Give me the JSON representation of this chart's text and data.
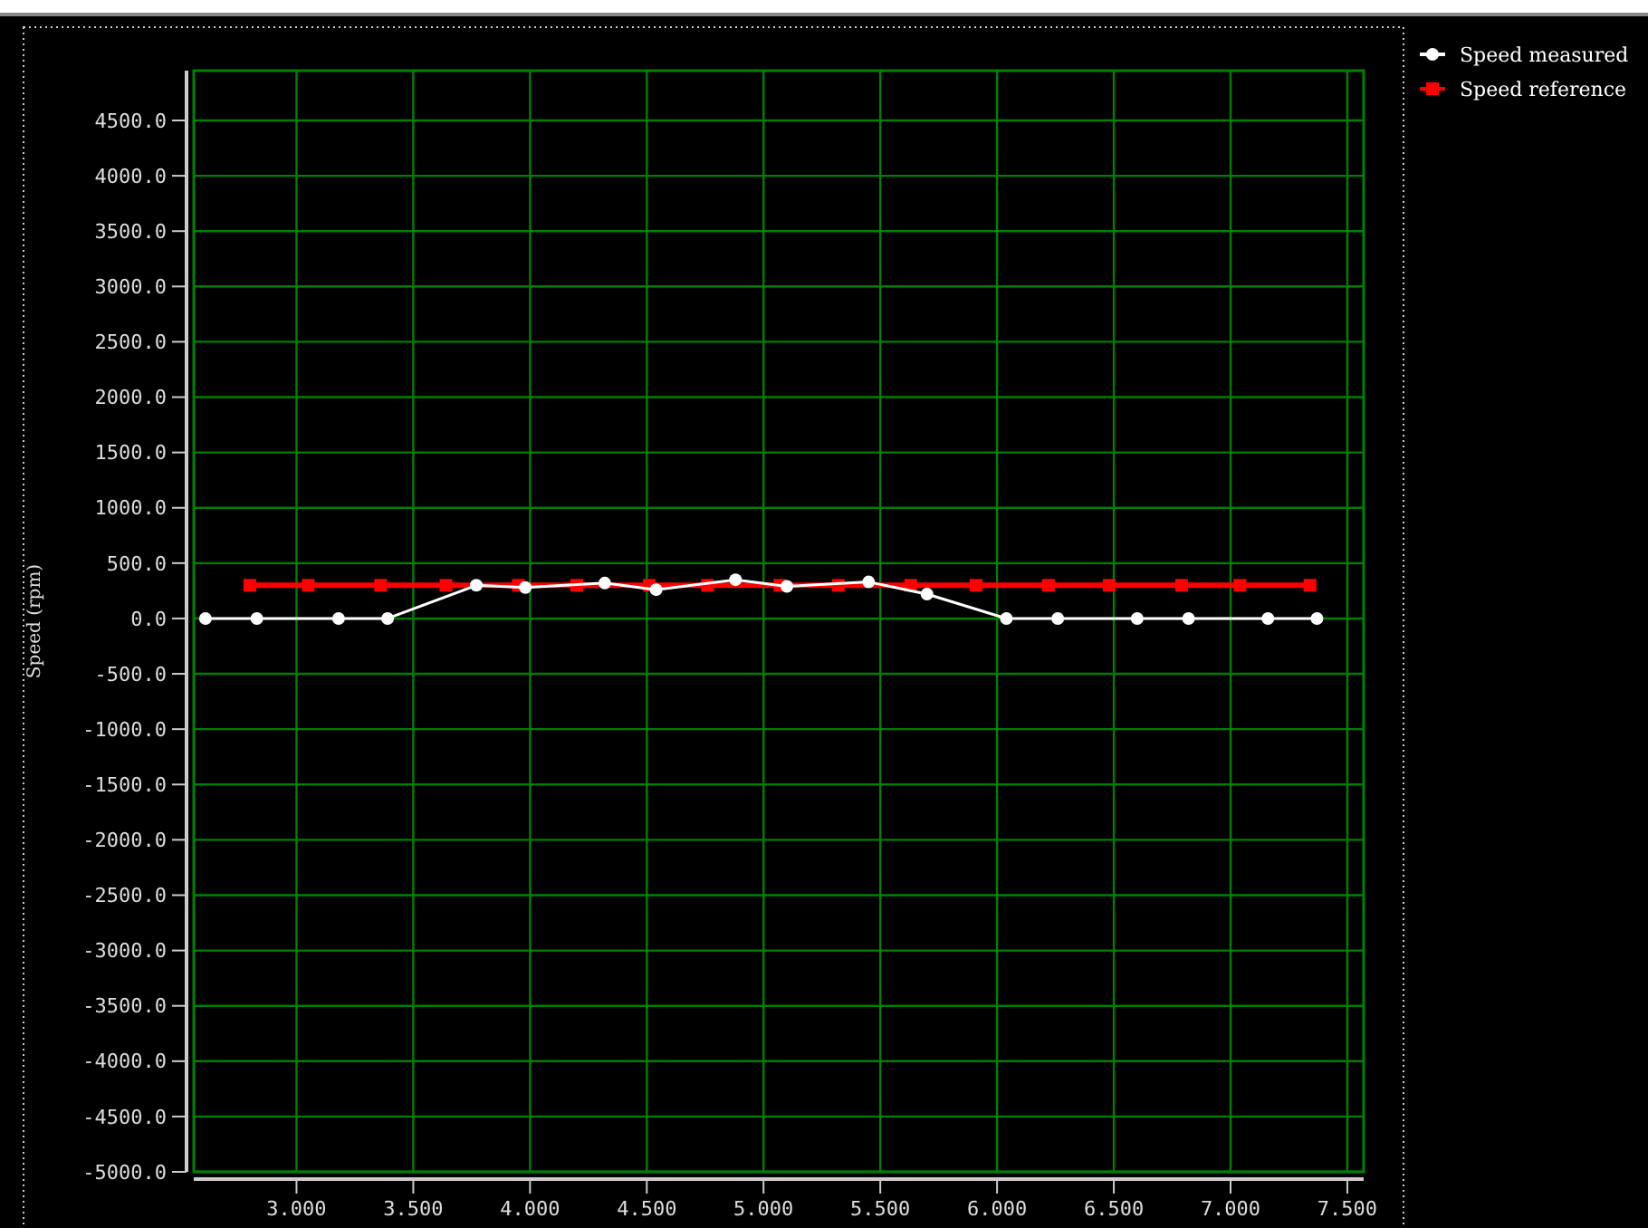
{
  "chart_data": {
    "type": "line",
    "ylabel": "Speed (rpm)",
    "xlim": [
      2.56,
      7.57
    ],
    "ylim": [
      -5000,
      4950
    ],
    "xticks": [
      {
        "value": 3,
        "label": "3.000"
      },
      {
        "value": 3.5,
        "label": "3.500"
      },
      {
        "value": 4,
        "label": "4.000"
      },
      {
        "value": 4.5,
        "label": "4.500"
      },
      {
        "value": 5,
        "label": "5.000"
      },
      {
        "value": 5.5,
        "label": "5.500"
      },
      {
        "value": 6,
        "label": "6.000"
      },
      {
        "value": 6.5,
        "label": "6.500"
      },
      {
        "value": 7,
        "label": "7.000"
      },
      {
        "value": 7.5,
        "label": "7.500"
      }
    ],
    "yticks": [
      {
        "value": -5000,
        "label": "-5000.0"
      },
      {
        "value": -4500,
        "label": "-4500.0"
      },
      {
        "value": -4000,
        "label": "-4000.0"
      },
      {
        "value": -3500,
        "label": "-3500.0"
      },
      {
        "value": -3000,
        "label": "-3000.0"
      },
      {
        "value": -2500,
        "label": "-2500.0"
      },
      {
        "value": -2000,
        "label": "-2000.0"
      },
      {
        "value": -1500,
        "label": "-1500.0"
      },
      {
        "value": -1000,
        "label": "-1000.0"
      },
      {
        "value": -500,
        "label": "-500.0"
      },
      {
        "value": 0,
        "label": "0.0"
      },
      {
        "value": 500,
        "label": "500.0"
      },
      {
        "value": 1000,
        "label": "1000.0"
      },
      {
        "value": 1500,
        "label": "1500.0"
      },
      {
        "value": 2000,
        "label": "2000.0"
      },
      {
        "value": 2500,
        "label": "2500.0"
      },
      {
        "value": 3000,
        "label": "3000.0"
      },
      {
        "value": 3500,
        "label": "3500.0"
      },
      {
        "value": 4000,
        "label": "4000.0"
      },
      {
        "value": 4500,
        "label": "4500.0"
      }
    ],
    "grid": true,
    "legend": "top right",
    "line_style": "solid",
    "series": [
      {
        "name": "Speed measured",
        "color": "#ffffff",
        "marker": "circle",
        "x": [
          2.61,
          2.83,
          3.18,
          3.39,
          3.77,
          3.98,
          4.32,
          4.54,
          4.88,
          5.1,
          5.45,
          5.7,
          6.04,
          6.26,
          6.6,
          6.82,
          7.16,
          7.37
        ],
        "values": [
          0,
          0,
          0,
          0,
          300,
          280,
          320,
          260,
          350,
          290,
          330,
          220,
          0,
          0,
          0,
          0,
          0,
          0
        ]
      },
      {
        "name": "Speed reference",
        "color": "#ff0000",
        "marker": "square",
        "x": [
          2.8,
          3.05,
          3.36,
          3.64,
          3.95,
          4.2,
          4.51,
          4.76,
          5.07,
          5.32,
          5.63,
          5.91,
          6.22,
          6.48,
          6.79,
          7.04,
          7.34
        ],
        "values": [
          300,
          300,
          300,
          300,
          300,
          300,
          300,
          300,
          300,
          300,
          300,
          300,
          300,
          300,
          300,
          300,
          300
        ]
      }
    ]
  }
}
